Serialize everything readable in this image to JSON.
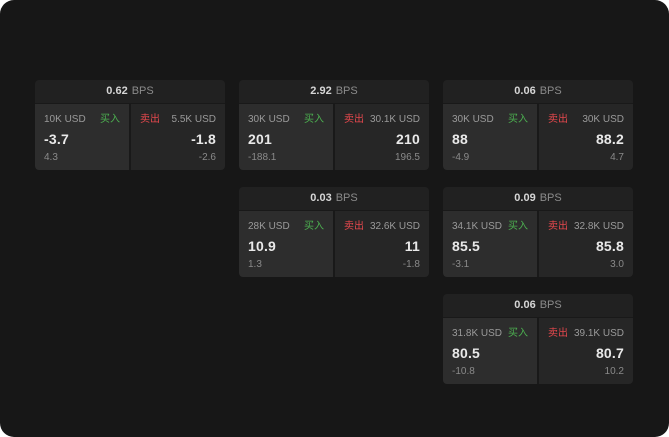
{
  "cards": [
    {
      "bps": "0.62",
      "bps_unit": "BPS",
      "buy": {
        "amount": "10K USD",
        "label": "买入",
        "price": "-3.7",
        "sub": "4.3"
      },
      "sell": {
        "amount": "5.5K USD",
        "label": "卖出",
        "price": "-1.8",
        "sub": "-2.6"
      }
    },
    {
      "bps": "2.92",
      "bps_unit": "BPS",
      "buy": {
        "amount": "30K USD",
        "label": "买入",
        "price": "201",
        "sub": "-188.1"
      },
      "sell": {
        "amount": "30.1K USD",
        "label": "卖出",
        "price": "210",
        "sub": "196.5"
      }
    },
    {
      "bps": "0.06",
      "bps_unit": "BPS",
      "buy": {
        "amount": "30K USD",
        "label": "买入",
        "price": "88",
        "sub": "-4.9"
      },
      "sell": {
        "amount": "30K USD",
        "label": "卖出",
        "price": "88.2",
        "sub": "4.7"
      }
    },
    {
      "bps": "0.03",
      "bps_unit": "BPS",
      "buy": {
        "amount": "28K USD",
        "label": "买入",
        "price": "10.9",
        "sub": "1.3"
      },
      "sell": {
        "amount": "32.6K USD",
        "label": "卖出",
        "price": "11",
        "sub": "-1.8"
      }
    },
    {
      "bps": "0.09",
      "bps_unit": "BPS",
      "buy": {
        "amount": "34.1K USD",
        "label": "买入",
        "price": "85.5",
        "sub": "-3.1"
      },
      "sell": {
        "amount": "32.8K USD",
        "label": "卖出",
        "price": "85.8",
        "sub": "3.0"
      }
    },
    {
      "bps": "0.06",
      "bps_unit": "BPS",
      "buy": {
        "amount": "31.8K USD",
        "label": "买入",
        "price": "80.5",
        "sub": "-10.8"
      },
      "sell": {
        "amount": "39.1K USD",
        "label": "卖出",
        "price": "80.7",
        "sub": "10.2"
      }
    }
  ]
}
